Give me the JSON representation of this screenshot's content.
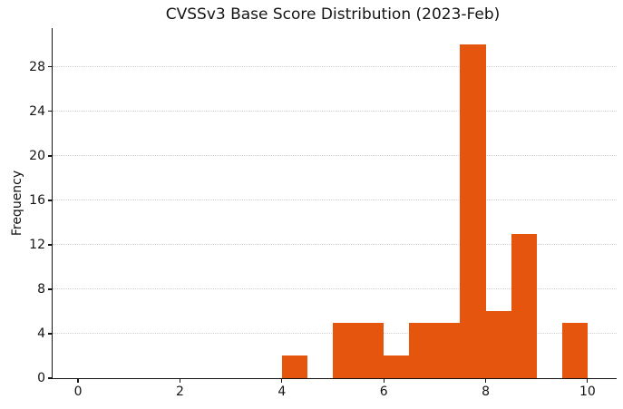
{
  "chart_data": {
    "type": "bar",
    "subtype": "histogram",
    "title": "CVSSv3 Base Score Distribution (2023-Feb)",
    "xlabel": "",
    "ylabel": "Frequency",
    "bin_width": 0.5,
    "bins": [
      {
        "start": 4.0,
        "count": 2
      },
      {
        "start": 4.5,
        "count": 0
      },
      {
        "start": 5.0,
        "count": 5
      },
      {
        "start": 5.5,
        "count": 5
      },
      {
        "start": 6.0,
        "count": 2
      },
      {
        "start": 6.5,
        "count": 5
      },
      {
        "start": 7.0,
        "count": 5
      },
      {
        "start": 7.5,
        "count": 30
      },
      {
        "start": 8.0,
        "count": 6
      },
      {
        "start": 8.5,
        "count": 13
      },
      {
        "start": 9.0,
        "count": 0
      },
      {
        "start": 9.5,
        "count": 5
      }
    ],
    "xticks": [
      0,
      2,
      4,
      6,
      8,
      10
    ],
    "yticks": [
      0,
      4,
      8,
      12,
      16,
      20,
      24,
      28
    ],
    "xlim": [
      -0.5,
      10.5
    ],
    "ylim": [
      0,
      31.5
    ],
    "bar_color": "#e6550d",
    "grid_color": "#cfcfcf",
    "grid_style": "dotted-horizontal",
    "axis_color": "#141414",
    "background_color": "#ffffff",
    "legend": "none",
    "spines": [
      "left",
      "bottom"
    ]
  }
}
